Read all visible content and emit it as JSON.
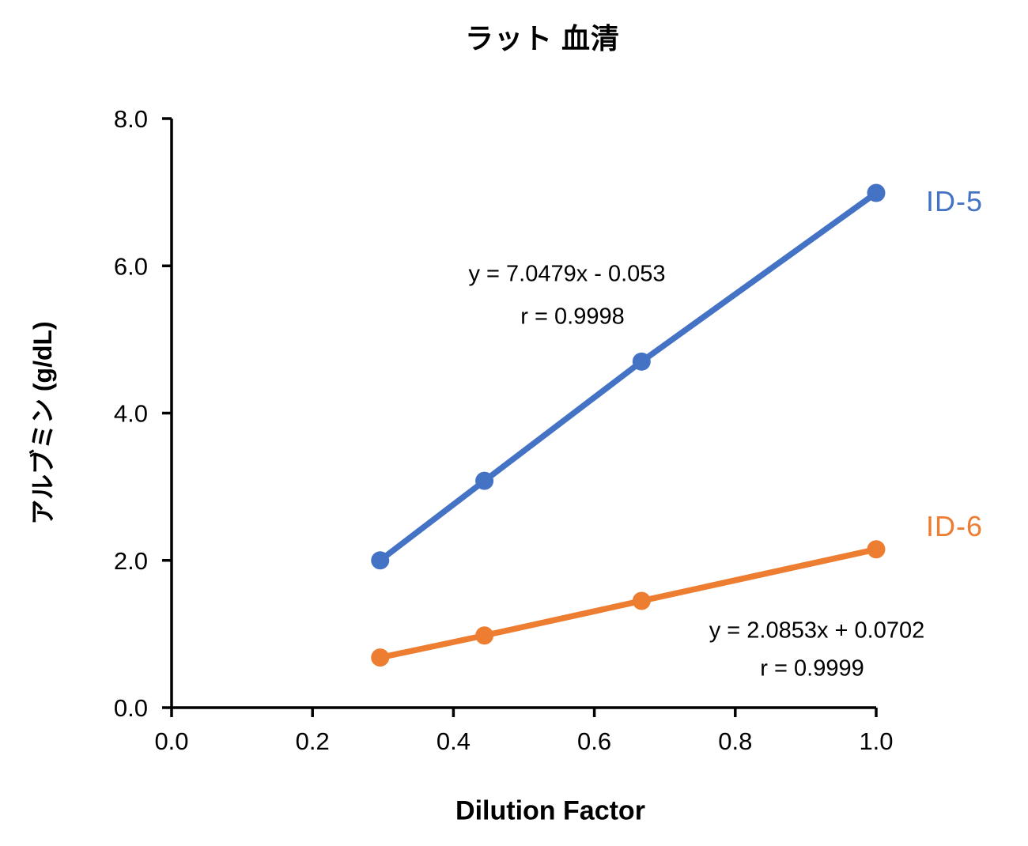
{
  "chart_data": {
    "type": "line",
    "title": "ラット 血清",
    "xlabel": "Dilution Factor",
    "ylabel": "アルブミン (g/dL)",
    "xlim": [
      0.0,
      1.0
    ],
    "ylim": [
      0.0,
      8.0
    ],
    "xtick_labels": [
      "0.0",
      "0.2",
      "0.4",
      "0.6",
      "0.8",
      "1.0"
    ],
    "ytick_labels": [
      "0.0",
      "2.0",
      "4.0",
      "6.0",
      "8.0"
    ],
    "grid": false,
    "legend_position": "labels-at-line-end",
    "x": [
      0.296,
      0.444,
      0.667,
      1.0
    ],
    "series": [
      {
        "name": "ID-5",
        "color": "#4472C4",
        "values": [
          2.0,
          3.08,
          4.7,
          6.99
        ],
        "equation": "y = 7.0479x - 0.053",
        "r_label": "r = 0.9998"
      },
      {
        "name": "ID-6",
        "color": "#ED7D31",
        "values": [
          0.68,
          0.98,
          1.45,
          2.15
        ],
        "equation": "y = 2.0853x + 0.0702",
        "r_label": "r = 0.9999"
      }
    ],
    "axis_color": "#000000"
  }
}
